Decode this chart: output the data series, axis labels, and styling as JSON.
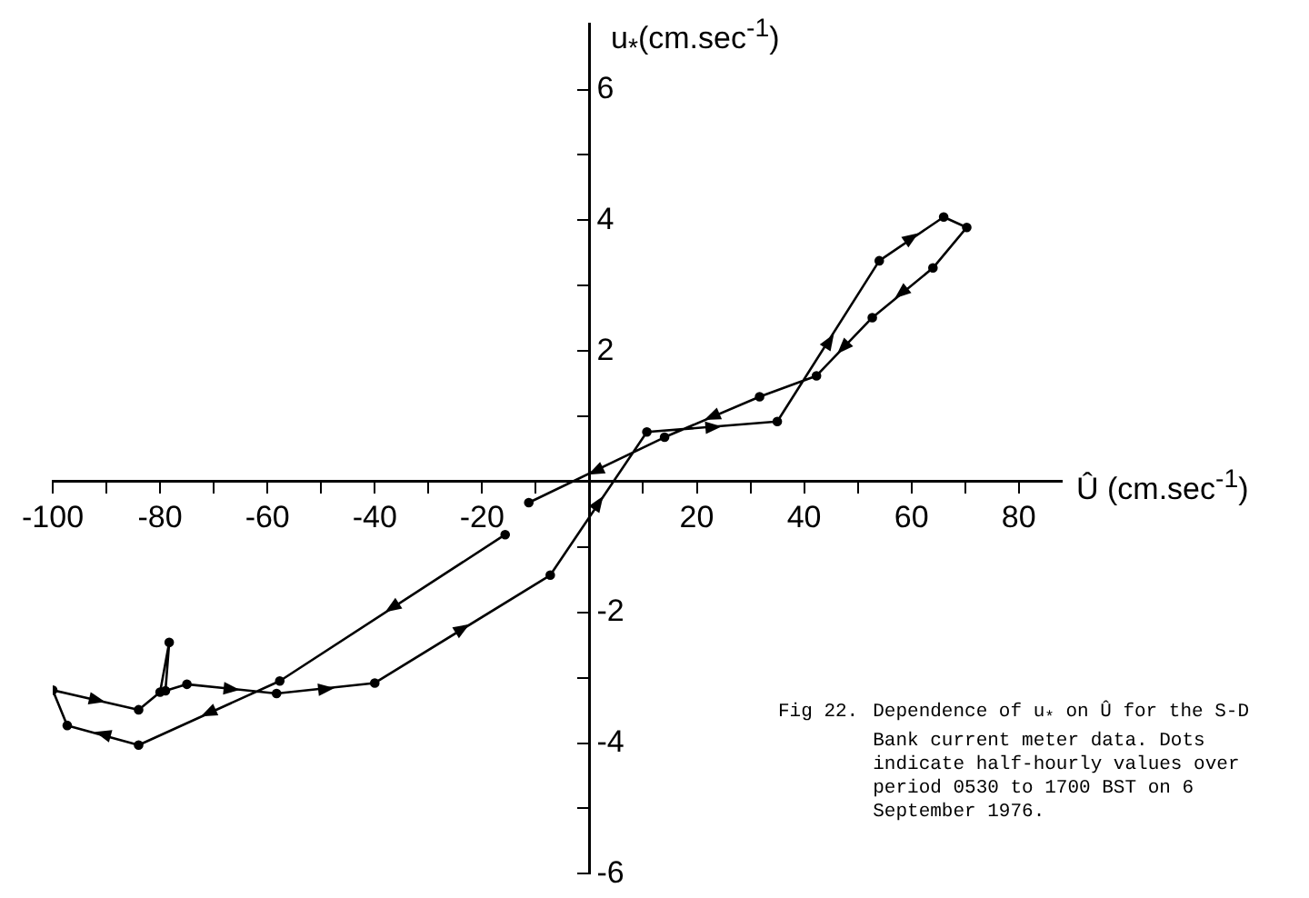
{
  "chart_data": {
    "type": "line",
    "xlabel": "Û (cm.sec$^{-1}$)",
    "ylabel": "u$_{*}$(cm.sec$^{-1}$)",
    "annotations": [
      "Fig 22.",
      "Dependence of u$_{*}$ on Û for the S-D Bank current meter data. Dots indicate half-hourly values over period 0530 to 1700 BST on 6 September 1976."
    ],
    "series": [
      {
        "color": "#000000",
        "x": [
          -15.7,
          -57.7,
          -84,
          -97.3,
          -100,
          -84,
          -80,
          -78.3,
          -79,
          -75,
          -58.3,
          -40,
          -7.3,
          10.7,
          35,
          54,
          66,
          70.3,
          64,
          52.7,
          42.3,
          31.7,
          14,
          -11.3
        ],
        "values": [
          -0.81,
          -3.05,
          -4.03,
          -3.73,
          -3.19,
          -3.49,
          -3.22,
          -2.46,
          -3.2,
          -3.1,
          -3.24,
          -3.08,
          -1.43,
          0.76,
          0.92,
          3.38,
          4.05,
          3.89,
          3.27,
          2.51,
          1.62,
          1.3,
          0.68,
          -0.32
        ]
      }
    ],
    "xlim": [
      -100,
      88
    ],
    "ylim": [
      -6,
      7
    ],
    "xticks": [
      -100,
      {
        "value": -90,
        "label": null
      },
      -80,
      {
        "value": -70,
        "label": null
      },
      -60,
      {
        "value": -50,
        "label": null
      },
      -40,
      {
        "value": -30,
        "label": null
      },
      -20,
      {
        "value": -10,
        "label": null
      },
      {
        "value": 10,
        "label": null
      },
      20,
      {
        "value": 30,
        "label": null
      },
      40,
      {
        "value": 50,
        "label": null
      },
      60,
      {
        "value": 70,
        "label": null
      },
      80
    ],
    "yticks": [
      -6,
      {
        "value": -5,
        "label": null
      },
      -4,
      {
        "value": -3,
        "label": null
      },
      -2,
      {
        "value": -1,
        "label": null
      },
      {
        "value": 1,
        "label": null
      },
      2,
      {
        "value": 3,
        "label": null
      },
      4,
      {
        "value": 5,
        "label": null
      },
      6
    ],
    "marker": "circle",
    "line_style": "solid",
    "grid": false,
    "legend": false
  }
}
